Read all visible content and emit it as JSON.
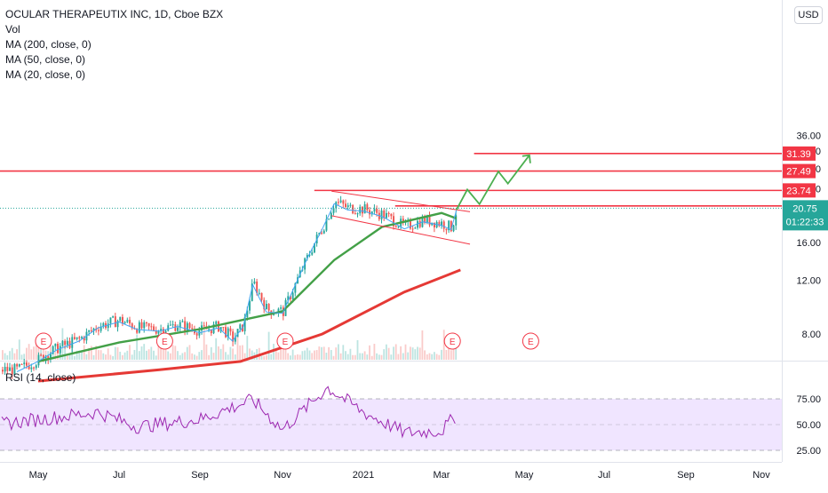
{
  "header": {
    "symbol_line": "OCULAR THERAPEUTIX INC, 1D, Cboe BZX",
    "indicators": [
      "Vol",
      "MA (200, close, 0)",
      "MA (50, close, 0)",
      "MA (20, close, 0)"
    ],
    "currency": "USD"
  },
  "rsi_panel": {
    "label": "RSI (14, close)",
    "levels": [
      "75.00",
      "50.00",
      "25.00"
    ]
  },
  "colors": {
    "up": "#26a69a",
    "down": "#ef5350",
    "ma200": "#e53935",
    "ma50": "#43a047",
    "ma20": "#42a5f5",
    "level_line": "#f23645",
    "projection": "#4caf50",
    "rsi_line": "#9c27b0",
    "rsi_band": "#ede0ff",
    "price_tag": "#26a69a"
  },
  "chart_data": [
    {
      "type": "candlestick",
      "title": "OCULAR THERAPEUTIX INC, 1D, Cboe BZX",
      "x_ticks": [
        "May",
        "Jul",
        "Sep",
        "Nov",
        "2021",
        "Mar",
        "May",
        "Jul",
        "Sep",
        "Nov"
      ],
      "y_ticks": [
        "8.00",
        "12.00",
        "16.00",
        "20.00",
        "24.00",
        "28.00",
        "32.00",
        "36.00"
      ],
      "y_scale": "log",
      "ylim": [
        6.8,
        37
      ],
      "price_data": [
        {
          "date": "2020-04-15",
          "close": 6.1
        },
        {
          "date": "2020-05-01",
          "close": 6.6
        },
        {
          "date": "2020-05-15",
          "close": 7.2
        },
        {
          "date": "2020-06-01",
          "close": 7.7
        },
        {
          "date": "2020-06-15",
          "close": 8.5
        },
        {
          "date": "2020-07-01",
          "close": 8.9
        },
        {
          "date": "2020-07-15",
          "close": 8.4
        },
        {
          "date": "2020-08-01",
          "close": 8.3
        },
        {
          "date": "2020-08-15",
          "close": 8.6
        },
        {
          "date": "2020-09-01",
          "close": 8.2
        },
        {
          "date": "2020-09-15",
          "close": 8.5
        },
        {
          "date": "2020-09-25",
          "close": 7.7
        },
        {
          "date": "2020-10-03",
          "close": 8.6
        },
        {
          "date": "2020-10-10",
          "close": 11.8
        },
        {
          "date": "2020-10-20",
          "close": 9.6
        },
        {
          "date": "2020-11-01",
          "close": 9.5
        },
        {
          "date": "2020-11-10",
          "close": 11.6
        },
        {
          "date": "2020-11-20",
          "close": 14.5
        },
        {
          "date": "2020-12-01",
          "close": 18.0
        },
        {
          "date": "2020-12-10",
          "close": 21.8
        },
        {
          "date": "2020-12-20",
          "close": 20.8
        },
        {
          "date": "2021-01-01",
          "close": 20.6
        },
        {
          "date": "2021-01-15",
          "close": 19.8
        },
        {
          "date": "2021-02-01",
          "close": 18.0
        },
        {
          "date": "2021-02-15",
          "close": 19.0
        },
        {
          "date": "2021-03-01",
          "close": 18.5
        },
        {
          "date": "2021-03-08",
          "close": 17.9
        },
        {
          "date": "2021-03-12",
          "close": 20.75
        }
      ],
      "moving_averages": [
        {
          "name": "MA (200, close, 0)",
          "points": [
            {
              "date": "2020-05-01",
              "value": 5.6
            },
            {
              "date": "2020-08-01",
              "value": 6.1
            },
            {
              "date": "2020-10-01",
              "value": 6.5
            },
            {
              "date": "2020-12-01",
              "value": 8.0
            },
            {
              "date": "2021-02-01",
              "value": 11.0
            },
            {
              "date": "2021-03-15",
              "value": 13.0
            }
          ]
        },
        {
          "name": "MA (50, close, 0)",
          "points": [
            {
              "date": "2020-05-01",
              "value": 6.5
            },
            {
              "date": "2020-07-01",
              "value": 7.5
            },
            {
              "date": "2020-09-01",
              "value": 8.3
            },
            {
              "date": "2020-11-01",
              "value": 9.5
            },
            {
              "date": "2020-12-10",
              "value": 14.0
            },
            {
              "date": "2021-01-15",
              "value": 18.0
            },
            {
              "date": "2021-03-01",
              "value": 20.0
            },
            {
              "date": "2021-03-12",
              "value": 19.2
            }
          ]
        }
      ],
      "levels": [
        "31.39",
        "27.49",
        "23.74",
        "21.11"
      ],
      "last_price": "20.75",
      "countdown": "01:22:33",
      "earnings_markers": [
        "E",
        "E",
        "E",
        "E",
        "E"
      ]
    },
    {
      "type": "line",
      "title": "RSI (14, close)",
      "y_ticks": [
        "75.00",
        "50.00",
        "25.00"
      ],
      "ylim": [
        25,
        100
      ],
      "values_by_date": [
        {
          "date": "2020-05-01",
          "value": 55
        },
        {
          "date": "2020-06-15",
          "value": 62
        },
        {
          "date": "2020-07-15",
          "value": 48
        },
        {
          "date": "2020-09-01",
          "value": 55
        },
        {
          "date": "2020-10-10",
          "value": 74
        },
        {
          "date": "2020-11-01",
          "value": 45
        },
        {
          "date": "2020-12-05",
          "value": 86
        },
        {
          "date": "2021-01-01",
          "value": 62
        },
        {
          "date": "2021-02-01",
          "value": 42
        },
        {
          "date": "2021-03-01",
          "value": 44
        },
        {
          "date": "2021-03-12",
          "value": 59
        }
      ]
    }
  ]
}
